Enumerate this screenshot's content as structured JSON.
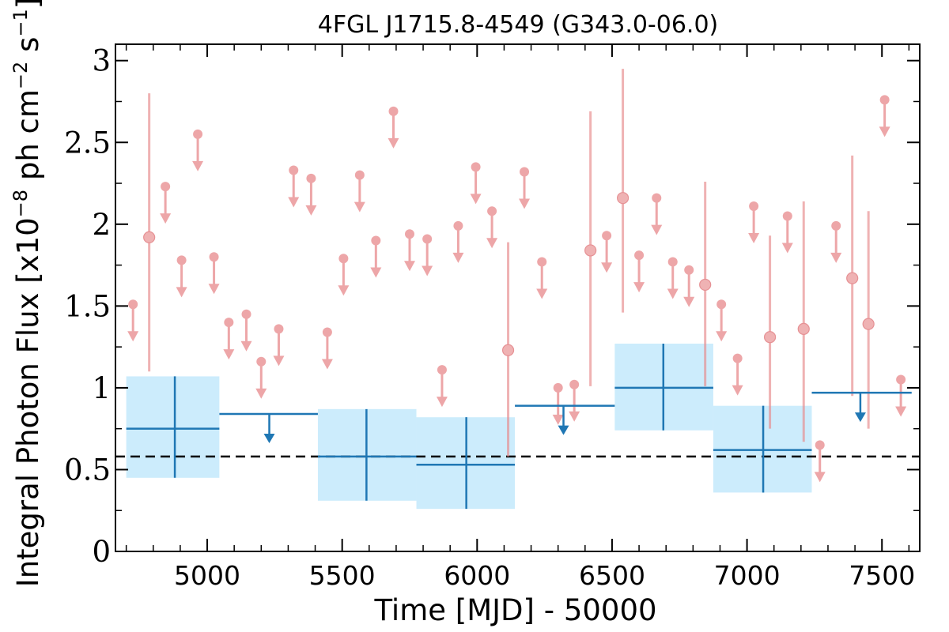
{
  "chart_data": {
    "type": "scatter",
    "title": "4FGL J1715.8-4549 (G343.0-06.0)",
    "xlabel": "Time [MJD] - 50000",
    "ylabel": "Integral Photon Flux [x10^-8 ph cm^-2 s^-1]",
    "xlim": [
      4660,
      7640
    ],
    "ylim": [
      0,
      3.1
    ],
    "xticks": [
      5000,
      5500,
      6000,
      6500,
      7000,
      7500
    ],
    "xtick_labels": [
      "5000",
      "5500",
      "6000",
      "6500",
      "7000",
      "7500"
    ],
    "yticks": [
      0,
      0.5,
      1,
      1.5,
      2,
      2.5,
      3
    ],
    "ytick_labels": [
      "0",
      "0.5",
      "1",
      "1.5",
      "2",
      "2.5",
      "3"
    ],
    "reference_line": {
      "y": 0.58,
      "style": "dashed"
    },
    "colors": {
      "short_bins": "#e8898c",
      "long_bins": "#1f77b4",
      "long_bins_band": "#ccecfc",
      "reference": "#000000"
    },
    "series": [
      {
        "bin": "long",
        "detections": [
          {
            "x": 4880,
            "xlo": 4700,
            "xhi": 5045,
            "y": 0.75,
            "ylo": 0.45,
            "yhi": 1.07
          },
          {
            "x": 5590,
            "xlo": 5410,
            "xhi": 5775,
            "y": 0.58,
            "ylo": 0.31,
            "yhi": 0.87
          },
          {
            "x": 5960,
            "xlo": 5775,
            "xhi": 6140,
            "y": 0.53,
            "ylo": 0.26,
            "yhi": 0.82
          },
          {
            "x": 6690,
            "xlo": 6510,
            "xhi": 6875,
            "y": 1.0,
            "ylo": 0.74,
            "yhi": 1.27
          },
          {
            "x": 7060,
            "xlo": 6875,
            "xhi": 7240,
            "y": 0.62,
            "ylo": 0.36,
            "yhi": 0.89
          }
        ],
        "upper_limits": [
          {
            "x": 5230,
            "xlo": 5045,
            "xhi": 5410,
            "y": 0.84
          },
          {
            "x": 6320,
            "xlo": 6140,
            "xhi": 6510,
            "y": 0.89
          },
          {
            "x": 7420,
            "xlo": 7240,
            "xhi": 7610,
            "y": 0.97
          }
        ]
      },
      {
        "bin": "short",
        "detections": [
          {
            "x": 4785,
            "y": 1.92,
            "ylo": 1.1,
            "yhi": 2.8
          },
          {
            "x": 6115,
            "y": 1.23,
            "ylo": 0.58,
            "yhi": 1.89
          },
          {
            "x": 6420,
            "y": 1.84,
            "ylo": 1.01,
            "yhi": 2.69
          },
          {
            "x": 6540,
            "y": 2.16,
            "ylo": 1.46,
            "yhi": 2.95
          },
          {
            "x": 6845,
            "y": 1.63,
            "ylo": 1.01,
            "yhi": 2.26
          },
          {
            "x": 7085,
            "y": 1.31,
            "ylo": 0.75,
            "yhi": 1.93
          },
          {
            "x": 7210,
            "y": 1.36,
            "ylo": 0.67,
            "yhi": 2.14
          },
          {
            "x": 7390,
            "y": 1.67,
            "ylo": 0.95,
            "yhi": 2.42
          },
          {
            "x": 7450,
            "y": 1.39,
            "ylo": 0.75,
            "yhi": 2.08
          }
        ],
        "upper_limits": [
          {
            "x": 4725,
            "y": 1.51
          },
          {
            "x": 4845,
            "y": 2.23
          },
          {
            "x": 4905,
            "y": 1.78
          },
          {
            "x": 4965,
            "y": 2.55
          },
          {
            "x": 5025,
            "y": 1.8
          },
          {
            "x": 5080,
            "y": 1.4
          },
          {
            "x": 5145,
            "y": 1.45
          },
          {
            "x": 5200,
            "y": 1.16
          },
          {
            "x": 5265,
            "y": 1.36
          },
          {
            "x": 5320,
            "y": 2.33
          },
          {
            "x": 5385,
            "y": 2.28
          },
          {
            "x": 5445,
            "y": 1.34
          },
          {
            "x": 5505,
            "y": 1.79
          },
          {
            "x": 5565,
            "y": 2.3
          },
          {
            "x": 5625,
            "y": 1.9
          },
          {
            "x": 5690,
            "y": 2.69
          },
          {
            "x": 5750,
            "y": 1.94
          },
          {
            "x": 5815,
            "y": 1.91
          },
          {
            "x": 5870,
            "y": 1.11
          },
          {
            "x": 5930,
            "y": 1.99
          },
          {
            "x": 5995,
            "y": 2.35
          },
          {
            "x": 6055,
            "y": 2.08
          },
          {
            "x": 6175,
            "y": 2.32
          },
          {
            "x": 6240,
            "y": 1.77
          },
          {
            "x": 6300,
            "y": 1.0
          },
          {
            "x": 6360,
            "y": 1.02
          },
          {
            "x": 6480,
            "y": 1.93
          },
          {
            "x": 6600,
            "y": 1.81
          },
          {
            "x": 6665,
            "y": 2.16
          },
          {
            "x": 6725,
            "y": 1.77
          },
          {
            "x": 6785,
            "y": 1.72
          },
          {
            "x": 6905,
            "y": 1.51
          },
          {
            "x": 6965,
            "y": 1.18
          },
          {
            "x": 7025,
            "y": 2.11
          },
          {
            "x": 7150,
            "y": 2.05
          },
          {
            "x": 7270,
            "y": 0.65
          },
          {
            "x": 7330,
            "y": 1.99
          },
          {
            "x": 7510,
            "y": 2.76
          },
          {
            "x": 7570,
            "y": 1.05
          }
        ]
      }
    ]
  }
}
